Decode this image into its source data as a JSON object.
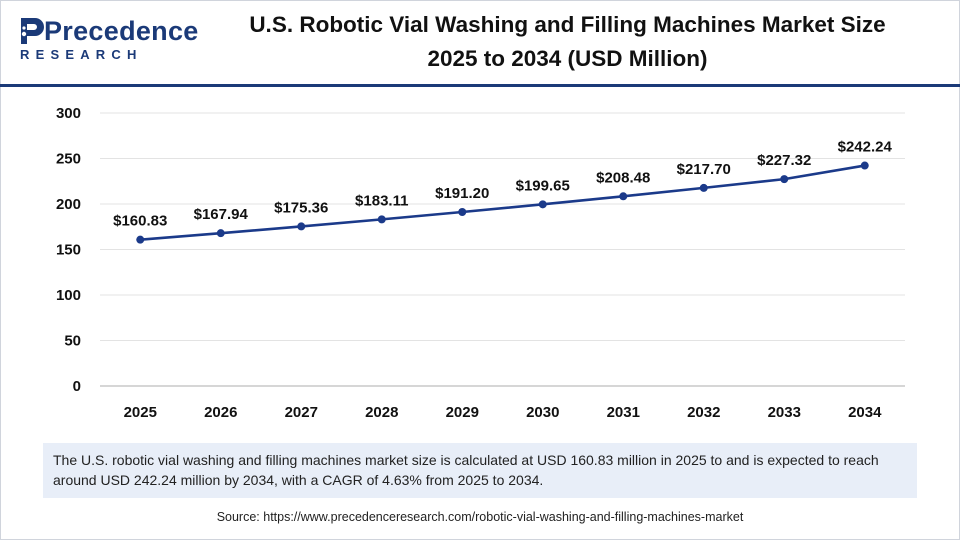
{
  "brand": {
    "name": "Precedence",
    "sub": "RESEARCH",
    "color": "#1b3a78"
  },
  "title": {
    "line1": "U.S. Robotic Vial Washing and Filling Machines Market Size",
    "line2": "2025 to 2034 (USD Million)"
  },
  "chart_data": {
    "type": "line",
    "title": "U.S. Robotic Vial Washing and Filling Machines Market Size 2025 to 2034 (USD Million)",
    "xlabel": "",
    "ylabel": "",
    "categories": [
      "2025",
      "2026",
      "2027",
      "2028",
      "2029",
      "2030",
      "2031",
      "2032",
      "2033",
      "2034"
    ],
    "series": [
      {
        "name": "Market Size (USD Million)",
        "values": [
          160.83,
          167.94,
          175.36,
          183.11,
          191.2,
          199.65,
          208.48,
          217.7,
          227.32,
          242.24
        ],
        "labels": [
          "$160.83",
          "$167.94",
          "$175.36",
          "$183.11",
          "$191.20",
          "$199.65",
          "$208.48",
          "$217.70",
          "$227.32",
          "$242.24"
        ],
        "color": "#1b3a8a"
      }
    ],
    "yticks": [
      0,
      50,
      100,
      150,
      200,
      250,
      300
    ],
    "ylim": [
      0,
      300
    ],
    "grid": true,
    "legend": "none"
  },
  "caption": "The U.S. robotic vial washing and filling machines market size is calculated at USD 160.83 million in 2025 to and is expected to reach around USD 242.24 million by 2034, with a CAGR of 4.63% from 2025 to 2034.",
  "source": "Source: https://www.precedenceresearch.com/robotic-vial-washing-and-filling-machines-market"
}
